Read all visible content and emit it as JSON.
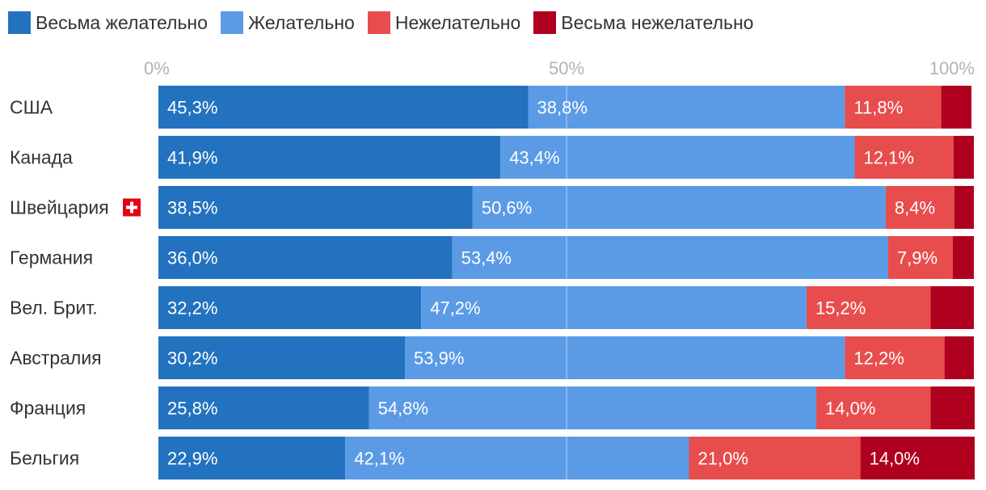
{
  "chart_data": {
    "type": "bar",
    "orientation": "horizontal",
    "stacked": true,
    "categories": [
      "США",
      "Канада",
      "Швейцария",
      "Германия",
      "Вел. Брит.",
      "Австралия",
      "Франция",
      "Бельгия"
    ],
    "series": [
      {
        "name": "Весьма желательно",
        "color": "#2372bf",
        "values": [
          45.3,
          41.9,
          38.5,
          36.0,
          32.2,
          30.2,
          25.8,
          22.9
        ]
      },
      {
        "name": "Желательно",
        "color": "#5b9be6",
        "values": [
          38.8,
          43.4,
          50.6,
          53.4,
          47.2,
          53.9,
          54.8,
          42.1
        ]
      },
      {
        "name": "Нежелательно",
        "color": "#e84d4d",
        "values": [
          11.8,
          12.1,
          8.4,
          7.9,
          15.2,
          12.2,
          14.0,
          21.0
        ]
      },
      {
        "name": "Весьма нежелательно",
        "color": "#b0001f",
        "values": [
          3.7,
          2.5,
          2.4,
          2.6,
          5.3,
          3.6,
          5.4,
          14.0
        ]
      }
    ],
    "data_labels": [
      [
        "45,3%",
        "38,8%",
        "11,8%",
        ""
      ],
      [
        "41,9%",
        "43,4%",
        "12,1%",
        ""
      ],
      [
        "38,5%",
        "50,6%",
        "8,4%",
        ""
      ],
      [
        "36,0%",
        "53,4%",
        "7,9%",
        ""
      ],
      [
        "32,2%",
        "47,2%",
        "15,2%",
        ""
      ],
      [
        "30,2%",
        "53,9%",
        "12,2%",
        ""
      ],
      [
        "25,8%",
        "54,8%",
        "14,0%",
        ""
      ],
      [
        "22,9%",
        "42,1%",
        "21,0%",
        "14,0%"
      ]
    ],
    "ticks": [
      0,
      50,
      100
    ],
    "tick_labels": [
      "0%",
      "50%",
      "100%"
    ],
    "xlim": [
      0,
      100
    ],
    "title": "",
    "xlabel": "",
    "ylabel": "",
    "legend_position": "top-left",
    "grid": true,
    "flag_icon": {
      "category": "Швейцария",
      "icon": "swiss-flag-icon",
      "color": "#e60012"
    }
  }
}
